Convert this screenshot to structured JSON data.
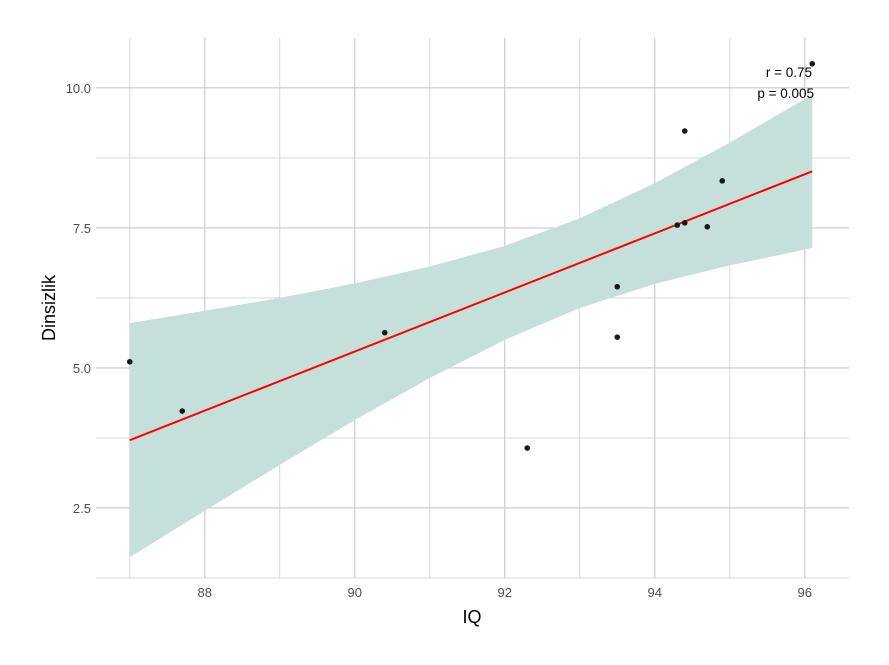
{
  "chart_data": {
    "type": "scatter",
    "title": "",
    "xlabel": "IQ",
    "ylabel": "Dinsizlik",
    "xlim": [
      86.55,
      96.59
    ],
    "ylim": [
      1.25,
      10.89
    ],
    "xticks": [
      88,
      90,
      92,
      94,
      96
    ],
    "xtick_labels": [
      "88",
      "90",
      "92",
      "94",
      "96"
    ],
    "yticks": [
      2.5,
      5.0,
      7.5,
      10.0
    ],
    "ytick_labels": [
      "2.5",
      "5.0",
      "7.5",
      "10.0"
    ],
    "grid": true,
    "points": {
      "x": [
        87.0,
        87.7,
        90.4,
        92.3,
        93.5,
        93.5,
        94.3,
        94.4,
        94.4,
        94.7,
        94.9,
        96.1
      ],
      "y": [
        5.11,
        4.23,
        5.63,
        3.57,
        6.45,
        5.55,
        7.55,
        7.59,
        9.23,
        7.52,
        8.34,
        10.43
      ],
      "color": "#1a1a1a"
    },
    "fit_line": {
      "x": [
        87.0,
        96.1
      ],
      "y": [
        3.71,
        8.51
      ],
      "color": "#ff0000"
    },
    "confidence_band": {
      "x": [
        87,
        88,
        89,
        90,
        91,
        92,
        93,
        94,
        95,
        96.1
      ],
      "lower": [
        1.62,
        2.45,
        3.27,
        4.07,
        4.82,
        5.5,
        6.07,
        6.5,
        6.83,
        7.14
      ],
      "upper": [
        5.8,
        6.02,
        6.25,
        6.51,
        6.81,
        7.18,
        7.67,
        8.3,
        9.02,
        9.88
      ],
      "color": "#c5e0da"
    },
    "annotations": [
      "r = 0.75",
      "p = 0.005"
    ]
  }
}
